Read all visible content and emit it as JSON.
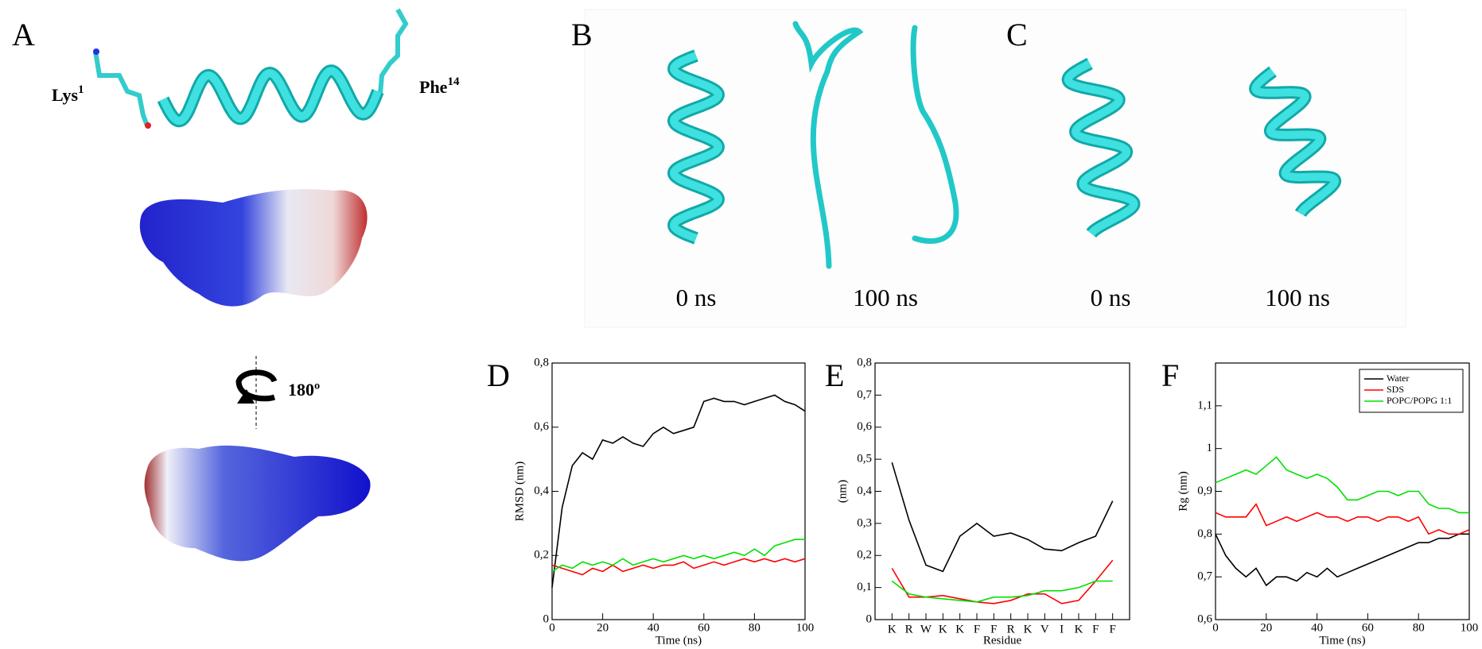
{
  "panel_labels": [
    "A",
    "B",
    "C",
    "D",
    "E",
    "F"
  ],
  "molecule_labels": [
    {
      "name": "Lys",
      "superscript": "1"
    },
    {
      "name": "Phe",
      "superscript": "14"
    }
  ],
  "rotation_label": "180º",
  "time_labels": [
    "0 ns",
    "100 ns",
    "0 ns",
    "100 ns"
  ],
  "chart_data": [
    {
      "type": "line",
      "x_label": "Time (ns)",
      "y_label": "RMSD (nm)",
      "x": [
        0,
        4,
        8,
        12,
        16,
        20,
        24,
        28,
        32,
        36,
        40,
        44,
        48,
        52,
        56,
        60,
        64,
        68,
        72,
        76,
        80,
        84,
        88,
        92,
        96,
        100
      ],
      "xlim": [
        0,
        100
      ],
      "xticks": [
        0,
        20,
        40,
        60,
        80,
        100
      ],
      "ylim": [
        0,
        0.8
      ],
      "yticks": [
        0,
        {
          "value": 0.2,
          "label": "0,2"
        },
        {
          "value": 0.4,
          "label": "0,4"
        },
        {
          "value": 0.6,
          "label": "0,6"
        },
        {
          "value": 0.8,
          "label": "0,8"
        }
      ],
      "series": [
        {
          "color": "#000000",
          "values": [
            0.1,
            0.35,
            0.48,
            0.52,
            0.5,
            0.56,
            0.55,
            0.57,
            0.55,
            0.54,
            0.58,
            0.6,
            0.58,
            0.59,
            0.6,
            0.68,
            0.69,
            0.68,
            0.68,
            0.67,
            0.68,
            0.69,
            0.7,
            0.68,
            0.67,
            0.65
          ]
        },
        {
          "color": "#ff0000",
          "values": [
            0.17,
            0.16,
            0.15,
            0.14,
            0.16,
            0.15,
            0.17,
            0.15,
            0.16,
            0.17,
            0.16,
            0.17,
            0.17,
            0.18,
            0.16,
            0.17,
            0.18,
            0.17,
            0.18,
            0.19,
            0.18,
            0.19,
            0.18,
            0.19,
            0.18,
            0.19
          ]
        },
        {
          "color": "#00e000",
          "values": [
            0.15,
            0.17,
            0.16,
            0.18,
            0.17,
            0.18,
            0.17,
            0.19,
            0.17,
            0.18,
            0.19,
            0.18,
            0.19,
            0.2,
            0.19,
            0.2,
            0.19,
            0.2,
            0.21,
            0.2,
            0.22,
            0.2,
            0.23,
            0.24,
            0.25,
            0.25
          ]
        }
      ]
    },
    {
      "type": "line",
      "x_label": "Residue",
      "y_label": "(nm)",
      "categories": [
        "K",
        "R",
        "W",
        "K",
        "K",
        "F",
        "F",
        "R",
        "K",
        "V",
        "I",
        "K",
        "F",
        "F"
      ],
      "ylim": [
        0,
        0.8
      ],
      "yticks": [
        0,
        {
          "value": 0.1,
          "label": "0,1"
        },
        {
          "value": 0.2,
          "label": "0,2"
        },
        {
          "value": 0.3,
          "label": "0,3"
        },
        {
          "value": 0.4,
          "label": "0,4"
        },
        {
          "value": 0.5,
          "label": "0,5"
        },
        {
          "value": 0.6,
          "label": "0,6"
        },
        {
          "value": 0.7,
          "label": "0,7"
        },
        {
          "value": 0.8,
          "label": "0,8"
        }
      ],
      "series": [
        {
          "color": "#000000",
          "values": [
            0.49,
            0.31,
            0.17,
            0.15,
            0.26,
            0.3,
            0.26,
            0.27,
            0.25,
            0.22,
            0.215,
            0.24,
            0.26,
            0.37
          ]
        },
        {
          "color": "#ff0000",
          "values": [
            0.16,
            0.07,
            0.07,
            0.075,
            0.065,
            0.055,
            0.05,
            0.06,
            0.08,
            0.08,
            0.05,
            0.06,
            0.12,
            0.185
          ]
        },
        {
          "color": "#00e000",
          "values": [
            0.12,
            0.08,
            0.07,
            0.065,
            0.06,
            0.055,
            0.07,
            0.07,
            0.075,
            0.09,
            0.09,
            0.1,
            0.12,
            0.12
          ]
        }
      ]
    },
    {
      "type": "line",
      "x_label": "Time (ns)",
      "y_label": "Rg (nm)",
      "legend": "upper right",
      "x": [
        0,
        4,
        8,
        12,
        16,
        20,
        24,
        28,
        32,
        36,
        40,
        44,
        48,
        52,
        56,
        60,
        64,
        68,
        72,
        76,
        80,
        84,
        88,
        92,
        96,
        100
      ],
      "xlim": [
        0,
        100
      ],
      "xticks": [
        0,
        20,
        40,
        60,
        80,
        100
      ],
      "ylim": [
        0.6,
        1.2
      ],
      "yticks": [
        {
          "value": 0.6,
          "label": "0,6"
        },
        {
          "value": 0.7,
          "label": "0,7"
        },
        {
          "value": 0.8,
          "label": "0,8"
        },
        {
          "value": 0.9,
          "label": "0,9"
        },
        1,
        {
          "value": 1.1,
          "label": "1,1"
        }
      ],
      "series": [
        {
          "name": "Water",
          "color": "#000000",
          "values": [
            0.8,
            0.75,
            0.72,
            0.7,
            0.72,
            0.68,
            0.7,
            0.7,
            0.69,
            0.71,
            0.7,
            0.72,
            0.7,
            0.71,
            0.72,
            0.73,
            0.74,
            0.75,
            0.76,
            0.77,
            0.78,
            0.78,
            0.79,
            0.79,
            0.8,
            0.8
          ]
        },
        {
          "name": "SDS",
          "color": "#ff0000",
          "values": [
            0.85,
            0.84,
            0.84,
            0.84,
            0.87,
            0.82,
            0.83,
            0.84,
            0.83,
            0.84,
            0.85,
            0.84,
            0.84,
            0.83,
            0.84,
            0.84,
            0.83,
            0.84,
            0.84,
            0.83,
            0.84,
            0.8,
            0.81,
            0.8,
            0.8,
            0.81
          ]
        },
        {
          "name": "POPC/POPG 1:1",
          "color": "#00e000",
          "values": [
            0.92,
            0.93,
            0.94,
            0.95,
            0.94,
            0.96,
            0.98,
            0.95,
            0.94,
            0.93,
            0.94,
            0.93,
            0.91,
            0.88,
            0.88,
            0.89,
            0.9,
            0.9,
            0.89,
            0.9,
            0.9,
            0.87,
            0.86,
            0.86,
            0.85,
            0.85
          ]
        }
      ]
    }
  ]
}
